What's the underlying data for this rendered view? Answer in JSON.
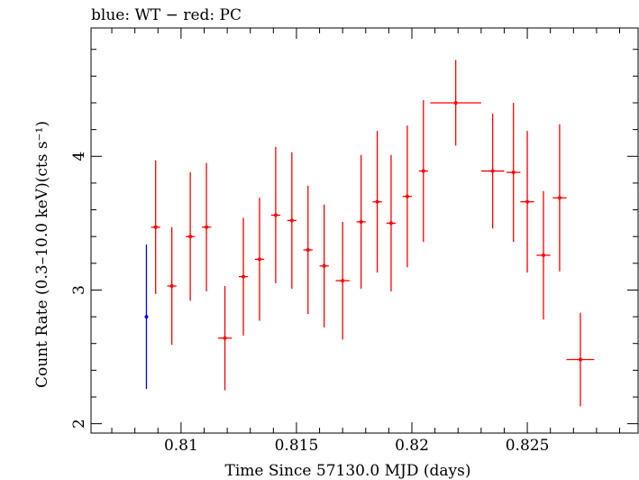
{
  "chart_data": {
    "type": "scatter",
    "title": "blue: WT − red: PC",
    "xlabel": "Time Since 57130.0 MJD (days)",
    "ylabel": "Count Rate (0.3–10.0 keV)(cts s⁻¹)",
    "xlim": [
      0.8061,
      0.8298
    ],
    "ylim": [
      1.93,
      4.96
    ],
    "x_ticks": [
      0.81,
      0.815,
      0.82,
      0.825
    ],
    "x_tick_labels": [
      "0.81",
      "0.815",
      "0.82",
      "0.825"
    ],
    "y_ticks": [
      2,
      3,
      4
    ],
    "y_tick_labels": [
      "2",
      "3",
      "4"
    ],
    "series": [
      {
        "name": "WT",
        "color": "#0000ff",
        "points": [
          {
            "x": 0.8085,
            "y": 2.8,
            "xerr": 0.0,
            "yerr": 0.54
          }
        ]
      },
      {
        "name": "PC",
        "color": "#ff0000",
        "points": [
          {
            "x": 0.8089,
            "y": 3.47,
            "xerr": 0.0002,
            "yerr": 0.5
          },
          {
            "x": 0.8096,
            "y": 3.03,
            "xerr": 0.0002,
            "yerr": 0.44
          },
          {
            "x": 0.8104,
            "y": 3.4,
            "xerr": 0.0002,
            "yerr": 0.48
          },
          {
            "x": 0.8111,
            "y": 3.47,
            "xerr": 0.0002,
            "yerr": 0.48
          },
          {
            "x": 0.8119,
            "y": 2.64,
            "xerr": 0.0003,
            "yerr": 0.39
          },
          {
            "x": 0.8127,
            "y": 3.1,
            "xerr": 0.0002,
            "yerr": 0.44
          },
          {
            "x": 0.8134,
            "y": 3.23,
            "xerr": 0.0002,
            "yerr": 0.46
          },
          {
            "x": 0.8141,
            "y": 3.56,
            "xerr": 0.0002,
            "yerr": 0.51
          },
          {
            "x": 0.8148,
            "y": 3.52,
            "xerr": 0.0002,
            "yerr": 0.51
          },
          {
            "x": 0.8155,
            "y": 3.3,
            "xerr": 0.0002,
            "yerr": 0.48
          },
          {
            "x": 0.8162,
            "y": 3.18,
            "xerr": 0.0002,
            "yerr": 0.46
          },
          {
            "x": 0.817,
            "y": 3.07,
            "xerr": 0.0003,
            "yerr": 0.44
          },
          {
            "x": 0.8178,
            "y": 3.51,
            "xerr": 0.0002,
            "yerr": 0.5
          },
          {
            "x": 0.8185,
            "y": 3.66,
            "xerr": 0.0002,
            "yerr": 0.53
          },
          {
            "x": 0.8191,
            "y": 3.5,
            "xerr": 0.0002,
            "yerr": 0.51
          },
          {
            "x": 0.8198,
            "y": 3.7,
            "xerr": 0.0002,
            "yerr": 0.53
          },
          {
            "x": 0.8205,
            "y": 3.89,
            "xerr": 0.0002,
            "yerr": 0.53
          },
          {
            "x": 0.8219,
            "y": 4.4,
            "xerr": 0.0011,
            "yerr": 0.32
          },
          {
            "x": 0.8235,
            "y": 3.89,
            "xerr": 0.0005,
            "yerr": 0.43
          },
          {
            "x": 0.8244,
            "y": 3.88,
            "xerr": 0.0003,
            "yerr": 0.52
          },
          {
            "x": 0.825,
            "y": 3.66,
            "xerr": 0.0003,
            "yerr": 0.53
          },
          {
            "x": 0.8257,
            "y": 3.26,
            "xerr": 0.0003,
            "yerr": 0.48
          },
          {
            "x": 0.8264,
            "y": 3.69,
            "xerr": 0.0003,
            "yerr": 0.55
          },
          {
            "x": 0.8273,
            "y": 2.48,
            "xerr": 0.0006,
            "yerr": 0.35
          }
        ]
      }
    ],
    "grid": false,
    "legend": "none"
  }
}
